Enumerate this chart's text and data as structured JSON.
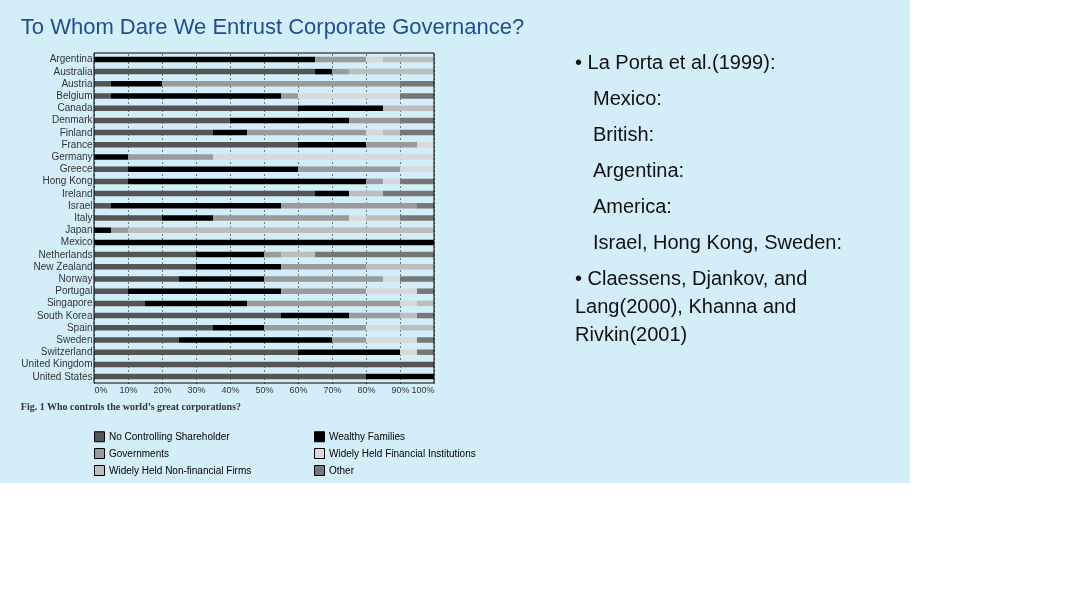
{
  "chart_data": [
    {
      "type": "bar",
      "orientation": "horizontal",
      "stacked": true,
      "title": "To Whom Dare We Entrust Corporate Governance?",
      "categories": [
        "Argentina",
        "Australia",
        "Austria",
        "Belgium",
        "Canada",
        "Denmark",
        "Finland",
        "France",
        "Germany",
        "Greece",
        "Hong Kong",
        "Ireland",
        "Israel",
        "Italy",
        "Japan",
        "Mexico",
        "Netherlands",
        "New Zealand",
        "Norway",
        "Portugal",
        "Singapore",
        "South Korea",
        "Spain",
        "Sweden",
        "Switzerland",
        "United Kingdom",
        "United States"
      ],
      "series": [
        {
          "name": "No Controlling Shareholder",
          "color": "#555555",
          "values": [
            0,
            65,
            5,
            5,
            60,
            40,
            35,
            60,
            0,
            10,
            10,
            65,
            5,
            20,
            0,
            0,
            30,
            30,
            25,
            10,
            15,
            55,
            35,
            25,
            60,
            100,
            80
          ]
        },
        {
          "name": "Wealthy Families",
          "color": "#000000",
          "values": [
            65,
            5,
            15,
            50,
            25,
            35,
            10,
            20,
            10,
            50,
            70,
            10,
            50,
            15,
            5,
            100,
            20,
            25,
            25,
            45,
            30,
            20,
            15,
            45,
            30,
            0,
            20
          ]
        },
        {
          "name": "Governments",
          "color": "#9a9a9a",
          "values": [
            15,
            5,
            70,
            5,
            0,
            15,
            35,
            15,
            25,
            30,
            5,
            0,
            40,
            40,
            5,
            0,
            5,
            25,
            35,
            25,
            45,
            15,
            30,
            10,
            0,
            0,
            0
          ]
        },
        {
          "name": "Widely Held Financial Institutions",
          "color": "#d9d9d9",
          "values": [
            5,
            0,
            0,
            30,
            0,
            0,
            5,
            5,
            65,
            10,
            5,
            0,
            0,
            5,
            0,
            0,
            0,
            0,
            5,
            15,
            5,
            0,
            10,
            15,
            5,
            0,
            0
          ]
        },
        {
          "name": "Widely Held Non-financial Firms",
          "color": "#bdbdbd",
          "values": [
            15,
            25,
            0,
            0,
            15,
            0,
            5,
            0,
            0,
            0,
            0,
            10,
            0,
            10,
            90,
            0,
            10,
            20,
            0,
            0,
            5,
            5,
            10,
            0,
            0,
            0,
            0
          ]
        },
        {
          "name": "Other",
          "color": "#777777",
          "values": [
            0,
            0,
            10,
            10,
            0,
            10,
            10,
            0,
            0,
            0,
            10,
            15,
            5,
            10,
            0,
            0,
            35,
            0,
            10,
            5,
            0,
            5,
            0,
            5,
            5,
            0,
            0
          ]
        }
      ],
      "xlim": [
        0,
        100
      ],
      "xticks": [
        {
          "value": 0,
          "label": "0%"
        },
        {
          "value": 10,
          "label": "10%"
        },
        {
          "value": 20,
          "label": "20%"
        },
        {
          "value": 30,
          "label": "30%"
        },
        {
          "value": 40,
          "label": "40%"
        },
        {
          "value": 50,
          "label": "50%"
        },
        {
          "value": 60,
          "label": "60%"
        },
        {
          "value": 70,
          "label": "70%"
        },
        {
          "value": 80,
          "label": "80%"
        },
        {
          "value": 90,
          "label": "90%"
        },
        {
          "value": 100,
          "label": "100%"
        }
      ],
      "grid": "x",
      "legend": "bottom",
      "annotations": [
        "Fig. 1    Who controls the world’s great corporations?"
      ]
    },
    {
      "type": "other",
      "annotations": [
        "• La Porta et al.(1999):",
        "Mexico:",
        "British:",
        "Argentina:",
        "America:",
        "Israel, Hong Kong, Sweden:",
        "• Claessens, Djankov, and\nLang(2000), Khanna and\nRivkin(2001)"
      ]
    }
  ]
}
